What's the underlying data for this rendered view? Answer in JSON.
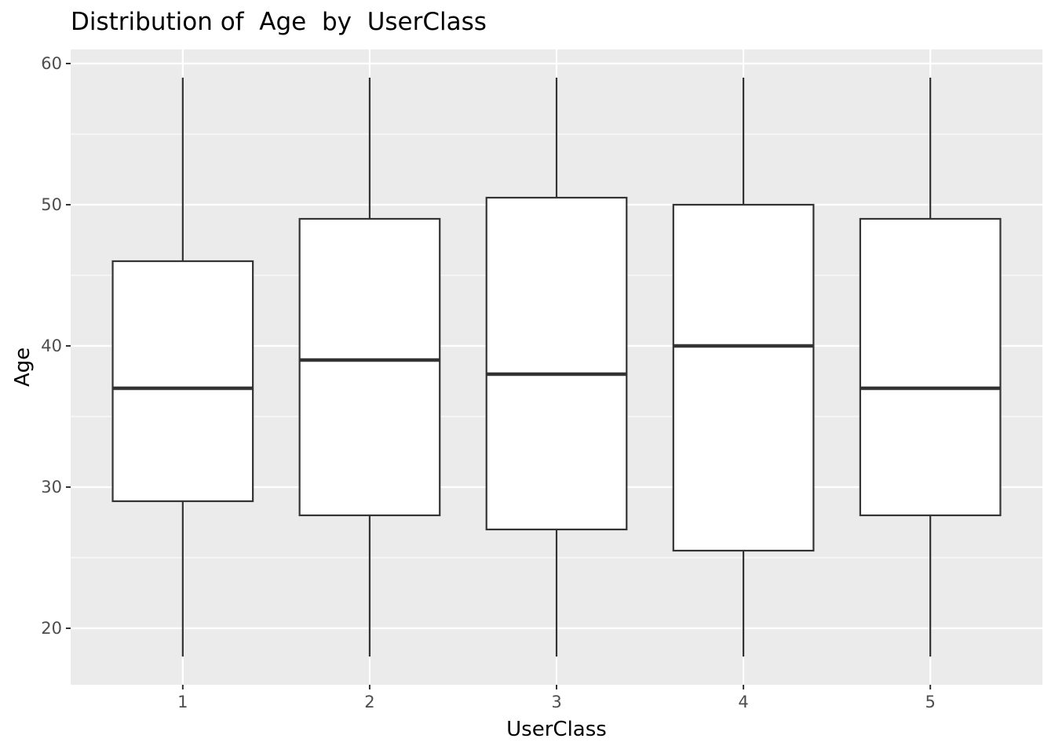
{
  "chart_data": {
    "type": "boxplot",
    "title": "Distribution of  Age  by  UserClass",
    "xlabel": "UserClass",
    "ylabel": "Age",
    "categories": [
      "1",
      "2",
      "3",
      "4",
      "5"
    ],
    "yticks": [
      "20",
      "30",
      "40",
      "50",
      "60"
    ],
    "ylim": [
      16,
      61
    ],
    "grid": true,
    "boxes": [
      {
        "category": "1",
        "whisker_low": 18,
        "q1": 29,
        "median": 37,
        "q3": 46,
        "whisker_high": 59
      },
      {
        "category": "2",
        "whisker_low": 18,
        "q1": 28,
        "median": 39,
        "q3": 49,
        "whisker_high": 59
      },
      {
        "category": "3",
        "whisker_low": 18,
        "q1": 27,
        "median": 38,
        "q3": 50.5,
        "whisker_high": 59
      },
      {
        "category": "4",
        "whisker_low": 18,
        "q1": 25.5,
        "median": 40,
        "q3": 50,
        "whisker_high": 59
      },
      {
        "category": "5",
        "whisker_low": 18,
        "q1": 28,
        "median": 37,
        "q3": 49,
        "whisker_high": 59
      }
    ],
    "colors": {
      "panel_background": "#ebebeb",
      "grid_line": "#ffffff",
      "box_fill": "#ffffff",
      "box_stroke": "#333333",
      "tick_text": "#4d4d4d"
    }
  }
}
